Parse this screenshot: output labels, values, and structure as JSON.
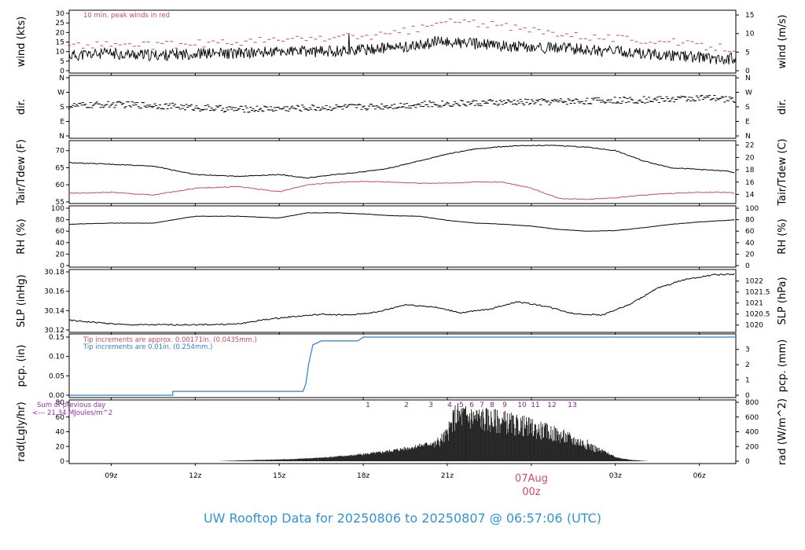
{
  "title": "UW Rooftop Data for 20250806  to  20250807 @ 06:57:06  (UTC)",
  "colors": {
    "peak": "#d04a64",
    "pcp_fine": "#d04a64",
    "pcp_coarse": "#2f7fcf",
    "title": "#2f93d6",
    "daymark": "#d04a64",
    "rad_note": "#9a2ab0"
  },
  "x_axis": {
    "range_hours": [
      7.5,
      31.3
    ],
    "ticks": [
      {
        "h": 9,
        "label": "09z"
      },
      {
        "h": 12,
        "label": "12z"
      },
      {
        "h": 15,
        "label": "15z"
      },
      {
        "h": 18,
        "label": "18z"
      },
      {
        "h": 21,
        "label": "21z"
      },
      {
        "h": 24,
        "label": "00z"
      },
      {
        "h": 27,
        "label": "03z"
      },
      {
        "h": 30,
        "label": "06z"
      }
    ],
    "day_marker": {
      "h": 24,
      "date_label": "07Aug",
      "hour_label": "00z"
    }
  },
  "chart_data": [
    {
      "type": "line",
      "panel": "wind",
      "ylabel_left": "wind (kts)",
      "ylabel_right": "wind (m/s)",
      "ylim": [
        0,
        30
      ],
      "yticks_left": [
        "0",
        "5",
        "10",
        "15",
        "20",
        "25",
        "30"
      ],
      "yticks_right": [
        "0",
        "5",
        "10",
        "15"
      ],
      "annotation": "10 min. peak winds in red",
      "series": [
        {
          "name": "wind",
          "x": [
            7.5,
            9,
            10.5,
            12,
            13.5,
            15,
            16.5,
            18,
            19,
            20,
            20.5,
            21,
            22,
            23,
            24,
            25,
            26,
            27,
            28,
            29,
            30,
            31,
            31.3
          ],
          "values": [
            8,
            9,
            8,
            9,
            9,
            10,
            10,
            11,
            12,
            13,
            15,
            15,
            14,
            13,
            12,
            12,
            11,
            10,
            9,
            8,
            7,
            6,
            7
          ]
        },
        {
          "name": "peak",
          "x": [
            7.5,
            9,
            10.5,
            12,
            13.5,
            15,
            16.5,
            18,
            19,
            20,
            20.5,
            21,
            22,
            23,
            24,
            25,
            26,
            27,
            28,
            29,
            30,
            31,
            31.3
          ],
          "values": [
            13,
            14,
            13,
            14,
            15,
            16,
            17,
            18,
            19,
            22,
            24,
            26,
            25,
            23,
            21,
            20,
            18,
            17,
            16,
            15,
            13,
            12,
            12
          ]
        }
      ]
    },
    {
      "type": "scatter",
      "panel": "dir",
      "ylabel_left": "dir.",
      "ylabel_right": "dir.",
      "yticks_left": [
        "N",
        "E",
        "S",
        "W",
        "N"
      ],
      "yticks_right": [
        "N",
        "E",
        "S",
        "W",
        "N"
      ],
      "ylim": [
        0,
        360
      ],
      "series": [
        {
          "name": "dir",
          "x": [
            7.5,
            9,
            10.5,
            12,
            13.5,
            15,
            16.5,
            18,
            19.5,
            21,
            22.5,
            24,
            25.5,
            27,
            28.5,
            30,
            31.3
          ],
          "values": [
            185,
            195,
            190,
            175,
            165,
            170,
            175,
            180,
            190,
            200,
            205,
            210,
            215,
            220,
            225,
            235,
            225
          ]
        }
      ]
    },
    {
      "type": "line",
      "panel": "temp",
      "ylabel_left": "Tair/Tdew (F)",
      "ylabel_right": "Tair/Tdew (C)",
      "ylim": [
        55,
        72
      ],
      "yticks_left": [
        "55",
        "60",
        "65",
        "70"
      ],
      "yticks_right": [
        "14",
        "16",
        "18",
        "20",
        "22"
      ],
      "series": [
        {
          "name": "Tair",
          "x": [
            7.5,
            9,
            10.5,
            12,
            13.5,
            15,
            16,
            17,
            18,
            19,
            20,
            21,
            22,
            23,
            24,
            25,
            26,
            27,
            28,
            29,
            30,
            31,
            31.3
          ],
          "values": [
            66.5,
            66,
            65.5,
            63,
            62.5,
            63,
            62,
            63,
            63.8,
            65,
            67,
            69,
            70.5,
            71.2,
            71.5,
            71.5,
            71,
            70,
            67,
            65,
            64.5,
            64,
            63.5
          ]
        },
        {
          "name": "Tdew",
          "x": [
            7.5,
            9,
            10.5,
            12,
            13.5,
            15,
            16,
            17,
            18,
            19,
            20,
            21,
            22,
            23,
            24,
            25,
            26,
            27,
            28,
            29,
            30,
            31,
            31.3
          ],
          "values": [
            57.5,
            57.8,
            57,
            59,
            59.5,
            58,
            60,
            60.7,
            61,
            60.8,
            60.5,
            60.5,
            60.8,
            60.8,
            59,
            56,
            55.8,
            56.2,
            57,
            57.5,
            57.8,
            57.8,
            57.5
          ]
        }
      ]
    },
    {
      "type": "line",
      "panel": "rh",
      "ylabel_left": "RH (%)",
      "ylabel_right": "RH (%)",
      "ylim": [
        0,
        100
      ],
      "yticks_left": [
        "0",
        "20",
        "40",
        "60",
        "80",
        "100"
      ],
      "yticks_right": [
        "0",
        "20",
        "40",
        "60",
        "80",
        "100"
      ],
      "series": [
        {
          "name": "RH",
          "x": [
            7.5,
            9,
            10.5,
            12,
            13.5,
            15,
            16,
            17,
            18,
            19,
            20,
            21,
            22,
            23,
            24,
            25,
            26,
            27,
            28,
            29,
            30,
            31,
            31.3
          ],
          "values": [
            72,
            74,
            74,
            86,
            86,
            83,
            92,
            92,
            90,
            87,
            86,
            79,
            74,
            72,
            69,
            63,
            60,
            61,
            66,
            72,
            76,
            79,
            80
          ]
        }
      ]
    },
    {
      "type": "line",
      "panel": "slp",
      "ylabel_left": "SLP (inHg)",
      "ylabel_right": "SLP (hPa)",
      "ylim": [
        30.114,
        30.192
      ],
      "yticks_left": [
        "30.12",
        "30.14",
        "30.16",
        "30.18"
      ],
      "yticks_right": [
        "1020",
        "1020.5",
        "1021",
        "1021.5",
        "1022"
      ],
      "series": [
        {
          "name": "SLP",
          "x": [
            7.5,
            8.5,
            9.5,
            10.5,
            12,
            13.5,
            14.5,
            15.5,
            16.5,
            17.5,
            18.5,
            19.5,
            20.5,
            21.5,
            22.5,
            23.5,
            24.5,
            25.5,
            26.5,
            27.5,
            28.5,
            29.5,
            30.5,
            31.3
          ],
          "values": [
            30.127,
            30.124,
            30.121,
            30.121,
            30.121,
            30.122,
            30.128,
            30.132,
            30.135,
            30.134,
            30.138,
            30.148,
            30.145,
            30.137,
            30.142,
            30.152,
            30.146,
            30.136,
            30.134,
            30.148,
            30.17,
            30.182,
            30.188,
            30.189
          ]
        }
      ]
    },
    {
      "type": "line",
      "panel": "pcp",
      "ylabel_left": "pcp. (in)",
      "ylabel_right": "pcp. (mm)",
      "ylim": [
        0,
        0.15
      ],
      "yticks_left": [
        "0.00",
        "0.05",
        "0.10",
        "0.15"
      ],
      "yticks_right": [
        "0",
        "1",
        "2",
        "3"
      ],
      "annotations": [
        "Tip increments are approx. 0.00171in. (0.0435mm.)",
        "Tip increments are 0.01in. (0.254mm.)"
      ],
      "series": [
        {
          "name": "pcp",
          "x": [
            7.5,
            11.2,
            11.2,
            15.85,
            15.95,
            16.05,
            16.2,
            16.5,
            17.8,
            18,
            31.3
          ],
          "values": [
            0,
            0,
            0.01,
            0.01,
            0.03,
            0.08,
            0.13,
            0.14,
            0.14,
            0.15,
            0.15
          ]
        }
      ]
    },
    {
      "type": "bar",
      "panel": "rad",
      "ylabel_left": "rad(Lgly/hr)",
      "ylabel_right": "rad (W/m^2)",
      "ylim": [
        0,
        80
      ],
      "yticks_left": [
        "0",
        "20",
        "40",
        "60",
        "80"
      ],
      "yticks_right": [
        "0",
        "200",
        "400",
        "600",
        "800"
      ],
      "annotations": [
        "Sum of previous day",
        "<--- 21.34 MJoules/m^2"
      ],
      "hour_labels": [
        "1",
        "2",
        "3",
        "4",
        "5",
        "6",
        "7",
        "8",
        "9",
        "10",
        "11",
        "12",
        "13"
      ],
      "series": [
        {
          "name": "rad",
          "x": [
            12.8,
            13.5,
            14.5,
            15.5,
            16.5,
            17.5,
            18.5,
            19.5,
            20.5,
            21,
            21.3,
            21.6,
            22,
            22.5,
            23,
            23.5,
            24,
            24.5,
            25,
            25.5,
            26,
            26.5,
            27,
            27.5,
            28.2
          ],
          "values": [
            0,
            1,
            2,
            3,
            5,
            8,
            12,
            18,
            26,
            45,
            78,
            76,
            74,
            70,
            66,
            62,
            56,
            50,
            44,
            36,
            28,
            16,
            6,
            2,
            0
          ]
        }
      ]
    }
  ]
}
